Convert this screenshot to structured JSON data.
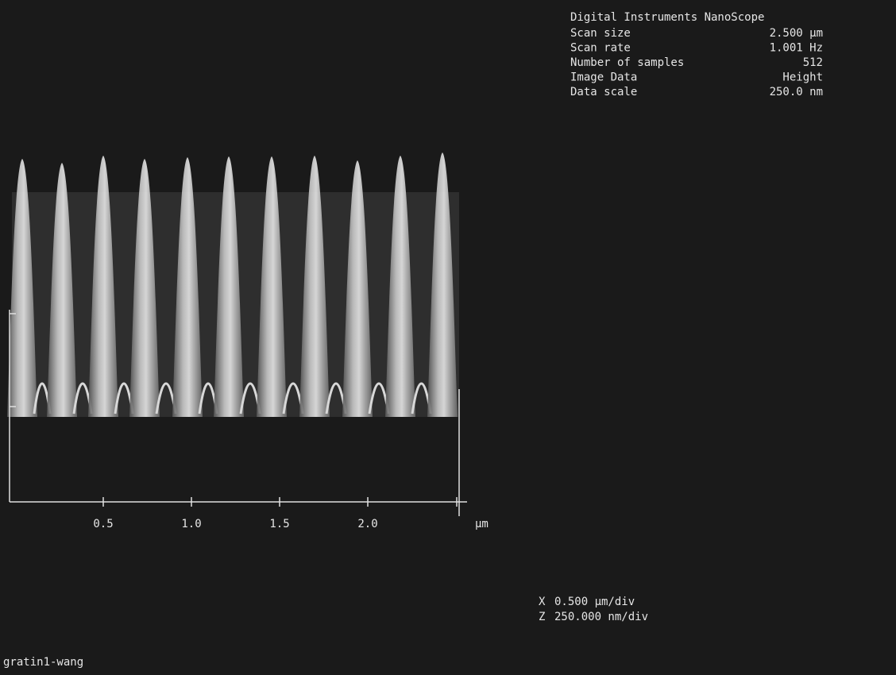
{
  "header": {
    "title": "Digital Instruments NanoScope",
    "params": [
      {
        "label": "Scan size",
        "value": "2.500 µm"
      },
      {
        "label": "Scan rate",
        "value": "1.001 Hz"
      },
      {
        "label": "Number of samples",
        "value": "512"
      },
      {
        "label": "Image Data",
        "value": "Height"
      },
      {
        "label": "Data scale",
        "value": "250.0 nm"
      }
    ]
  },
  "axis": {
    "ticks": [
      "0.5",
      "1.0",
      "1.5",
      "2.0"
    ],
    "unit": "µm"
  },
  "scale": [
    {
      "axis": "X",
      "value": "0.500 µm/div"
    },
    {
      "axis": "Z",
      "value": "250.000 nm/div"
    }
  ],
  "filename": "gratin1-wang"
}
